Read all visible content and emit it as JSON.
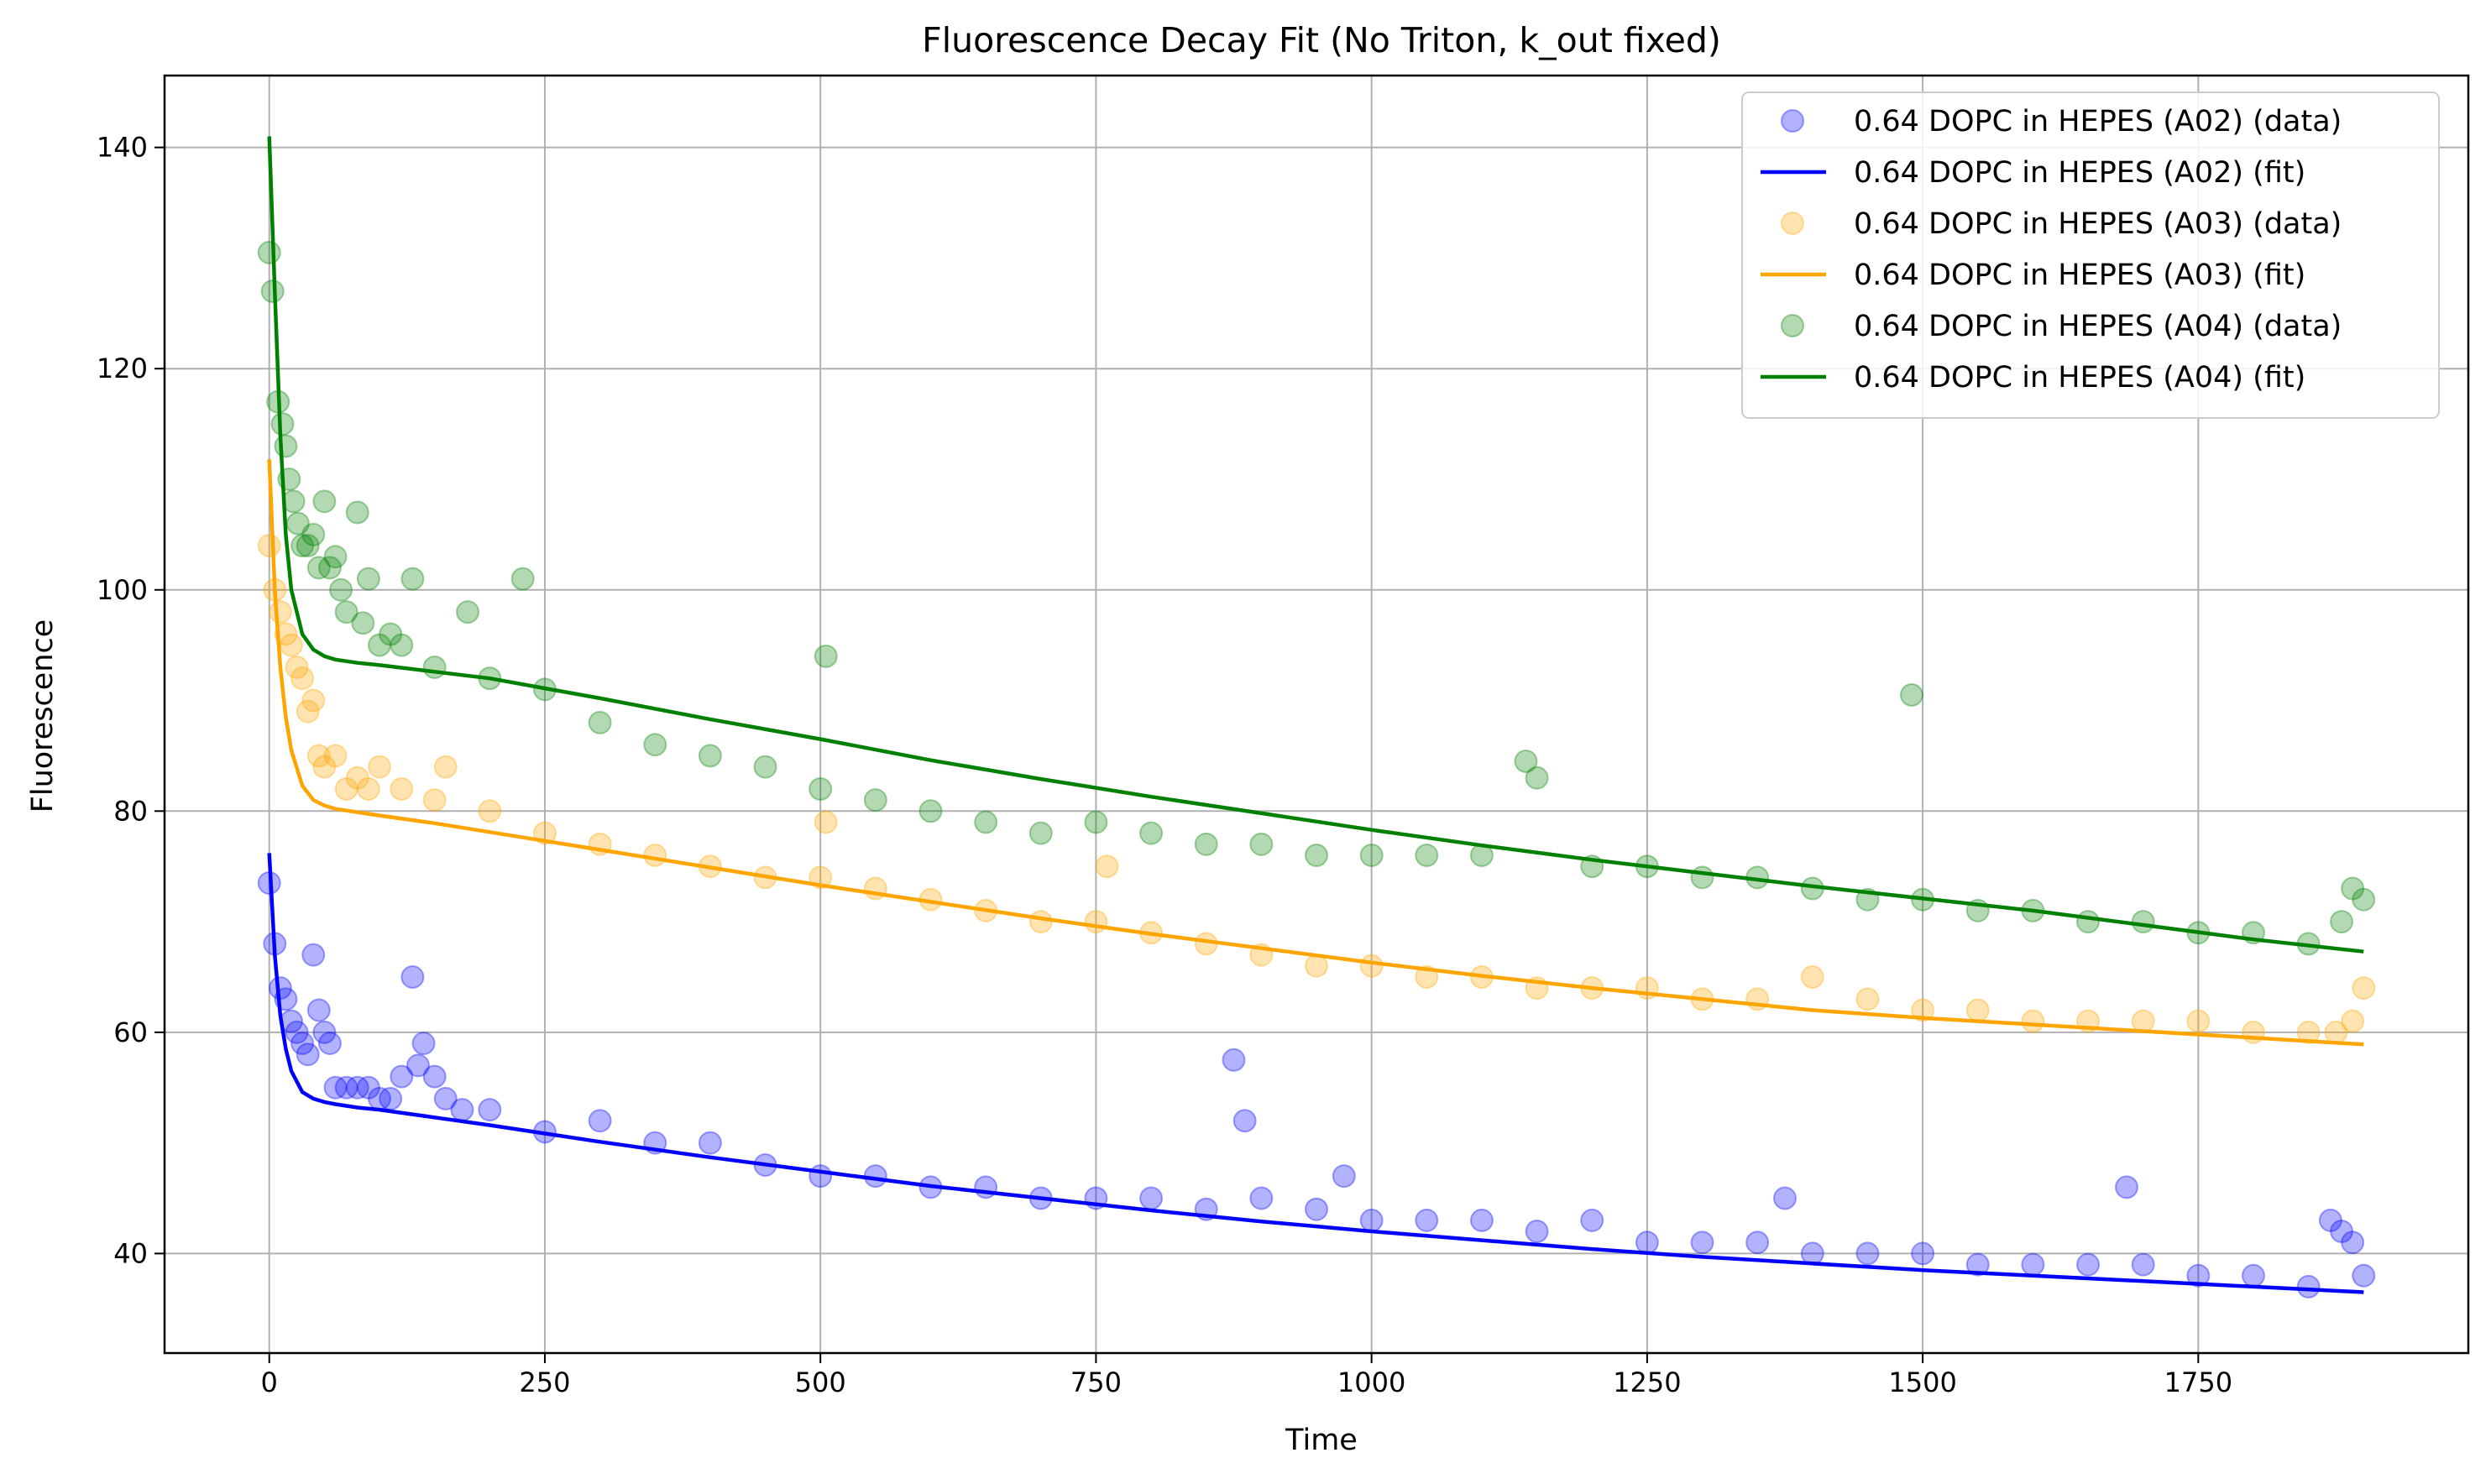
{
  "chart_data": {
    "type": "scatter",
    "title": "Fluorescence Decay Fit (No Triton, k_out fixed)",
    "xlabel": "Time",
    "ylabel": "Fluorescence",
    "xlim": [
      -95,
      1995
    ],
    "ylim": [
      31,
      146.5
    ],
    "xticks": [
      0,
      250,
      500,
      750,
      1000,
      1250,
      1500,
      1750
    ],
    "yticks": [
      40,
      60,
      80,
      100,
      120,
      140
    ],
    "grid": true,
    "legend_position": "top-right",
    "series": [
      {
        "name": "0.64 DOPC in HEPES (A02) (data)",
        "kind": "scatter",
        "color": "#0000ff",
        "alpha": 0.3,
        "x": [
          0,
          5,
          10,
          15,
          20,
          25,
          30,
          35,
          40,
          45,
          50,
          55,
          60,
          70,
          80,
          90,
          100,
          110,
          120,
          130,
          135,
          140,
          150,
          160,
          175,
          200,
          250,
          300,
          350,
          400,
          450,
          500,
          550,
          600,
          650,
          700,
          750,
          800,
          850,
          875,
          885,
          900,
          950,
          975,
          1000,
          1050,
          1100,
          1150,
          1200,
          1250,
          1300,
          1350,
          1375,
          1400,
          1450,
          1500,
          1550,
          1600,
          1650,
          1685,
          1700,
          1750,
          1800,
          1850,
          1870,
          1880,
          1890,
          1900
        ],
        "y": [
          73.5,
          68,
          64,
          63,
          61,
          60,
          59,
          58,
          67,
          62,
          60,
          59,
          55,
          55,
          55,
          55,
          54,
          54,
          56,
          65,
          57,
          59,
          56,
          54,
          53,
          53,
          51,
          52,
          50,
          50,
          48,
          47,
          47,
          46,
          46,
          45,
          45,
          45,
          44,
          57.5,
          52,
          45,
          44,
          47,
          43,
          43,
          43,
          42,
          43,
          41,
          41,
          41,
          45,
          40,
          40,
          40,
          39,
          39,
          39,
          46,
          39,
          38,
          38,
          37,
          43,
          42,
          41,
          38
        ]
      },
      {
        "name": "0.64 DOPC in HEPES (A02) (fit)",
        "kind": "line",
        "color": "#0000ff",
        "x": [
          0,
          5,
          10,
          15,
          20,
          30,
          40,
          50,
          60,
          80,
          100,
          150,
          200,
          300,
          400,
          500,
          600,
          700,
          800,
          900,
          1000,
          1100,
          1200,
          1300,
          1400,
          1500,
          1600,
          1700,
          1800,
          1900
        ],
        "y": [
          76.2,
          67,
          61.5,
          58.5,
          56.5,
          54.6,
          54,
          53.7,
          53.5,
          53.2,
          53,
          52.3,
          51.6,
          50.1,
          48.7,
          47.4,
          46.1,
          45.0,
          43.9,
          42.9,
          42.0,
          41.2,
          40.4,
          39.7,
          39.1,
          38.5,
          38.0,
          37.5,
          37.0,
          36.5
        ]
      },
      {
        "name": "0.64 DOPC in HEPES (A03) (data)",
        "kind": "scatter",
        "color": "#ffa500",
        "alpha": 0.3,
        "x": [
          0,
          5,
          10,
          15,
          20,
          25,
          30,
          35,
          40,
          45,
          50,
          60,
          70,
          80,
          90,
          100,
          120,
          150,
          160,
          200,
          250,
          300,
          350,
          400,
          450,
          500,
          505,
          550,
          600,
          650,
          700,
          750,
          760,
          800,
          850,
          900,
          950,
          1000,
          1050,
          1100,
          1150,
          1200,
          1250,
          1300,
          1350,
          1400,
          1450,
          1500,
          1550,
          1600,
          1650,
          1700,
          1750,
          1800,
          1850,
          1875,
          1890,
          1900
        ],
        "y": [
          104,
          100,
          98,
          96,
          95,
          93,
          92,
          89,
          90,
          85,
          84,
          85,
          82,
          83,
          82,
          84,
          82,
          81,
          84,
          80,
          78,
          77,
          76,
          75,
          74,
          74,
          79,
          73,
          72,
          71,
          70,
          70,
          75,
          69,
          68,
          67,
          66,
          66,
          65,
          65,
          64,
          64,
          64,
          63,
          63,
          65,
          63,
          62,
          62,
          61,
          61,
          61,
          61,
          60,
          60,
          60,
          61,
          64
        ]
      },
      {
        "name": "0.64 DOPC in HEPES (A03) (fit)",
        "kind": "line",
        "color": "#ffa500",
        "x": [
          0,
          5,
          10,
          15,
          20,
          30,
          40,
          50,
          60,
          80,
          100,
          150,
          200,
          300,
          400,
          500,
          600,
          700,
          800,
          900,
          1000,
          1100,
          1200,
          1300,
          1400,
          1500,
          1600,
          1700,
          1800,
          1900
        ],
        "y": [
          111.8,
          100,
          93,
          88.5,
          85.5,
          82.3,
          81,
          80.5,
          80.2,
          79.9,
          79.6,
          78.9,
          78.1,
          76.5,
          74.9,
          73.3,
          71.8,
          70.3,
          68.9,
          67.6,
          66.3,
          65.1,
          64.0,
          63.0,
          62.0,
          61.3,
          60.7,
          60.1,
          59.5,
          58.9
        ]
      },
      {
        "name": "0.64 DOPC in HEPES (A04) (data)",
        "kind": "scatter",
        "color": "#008000",
        "alpha": 0.3,
        "x": [
          0,
          3,
          8,
          12,
          15,
          18,
          22,
          26,
          30,
          35,
          40,
          45,
          50,
          55,
          60,
          65,
          70,
          80,
          85,
          90,
          100,
          110,
          120,
          130,
          150,
          180,
          200,
          230,
          250,
          300,
          350,
          400,
          450,
          500,
          505,
          550,
          600,
          650,
          700,
          750,
          800,
          850,
          900,
          950,
          1000,
          1050,
          1100,
          1140,
          1150,
          1200,
          1250,
          1300,
          1350,
          1400,
          1450,
          1490,
          1500,
          1550,
          1600,
          1650,
          1700,
          1750,
          1800,
          1850,
          1880,
          1890,
          1900
        ],
        "y": [
          130.5,
          127,
          117,
          115,
          113,
          110,
          108,
          106,
          104,
          104,
          105,
          102,
          108,
          102,
          103,
          100,
          98,
          107,
          97,
          101,
          95,
          96,
          95,
          101,
          93,
          98,
          92,
          101,
          91,
          88,
          86,
          85,
          84,
          82,
          94,
          81,
          80,
          79,
          78,
          79,
          78,
          77,
          77,
          76,
          76,
          76,
          76,
          84.5,
          83,
          75,
          75,
          74,
          74,
          73,
          72,
          90.5,
          72,
          71,
          71,
          70,
          70,
          69,
          69,
          68,
          70,
          73,
          72
        ]
      },
      {
        "name": "0.64 DOPC in HEPES (A04) (fit)",
        "kind": "line",
        "color": "#008000",
        "x": [
          0,
          5,
          10,
          15,
          20,
          30,
          40,
          50,
          60,
          80,
          100,
          150,
          200,
          300,
          400,
          500,
          600,
          700,
          800,
          900,
          1000,
          1100,
          1200,
          1300,
          1400,
          1500,
          1600,
          1700,
          1800,
          1900
        ],
        "y": [
          141,
          127,
          114,
          105,
          100,
          96,
          94.6,
          94,
          93.7,
          93.4,
          93.2,
          92.6,
          92,
          90.2,
          88.3,
          86.5,
          84.6,
          82.9,
          81.3,
          79.8,
          78.3,
          76.9,
          75.6,
          74.4,
          73.2,
          72.1,
          71.0,
          69.7,
          68.4,
          67.3
        ]
      }
    ]
  }
}
